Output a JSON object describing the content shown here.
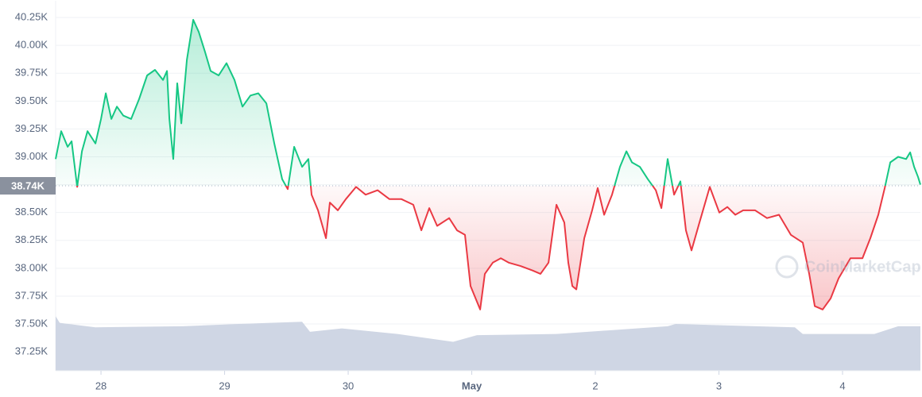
{
  "chart_data": {
    "type": "line",
    "x": [
      -0.367,
      -0.322,
      -0.27,
      -0.238,
      -0.193,
      -0.154,
      -0.109,
      -0.045,
      0,
      0.039,
      0.084,
      0.129,
      0.18,
      0.244,
      0.309,
      0.373,
      0.437,
      0.502,
      0.534,
      0.553,
      0.585,
      0.617,
      0.65,
      0.695,
      0.746,
      0.791,
      0.842,
      0.887,
      0.952,
      1.016,
      1.08,
      1.145,
      1.209,
      1.273,
      1.338,
      1.402,
      1.466,
      1.511,
      1.563,
      1.627,
      1.678,
      1.704,
      1.756,
      1.82,
      1.852,
      1.916,
      1.981,
      2.064,
      2.141,
      2.238,
      2.334,
      2.431,
      2.527,
      2.592,
      2.656,
      2.72,
      2.817,
      2.881,
      2.945,
      2.99,
      3.042,
      3.068,
      3.106,
      3.17,
      3.235,
      3.299,
      3.395,
      3.492,
      3.556,
      3.621,
      3.685,
      3.749,
      3.781,
      3.814,
      3.846,
      3.91,
      3.974,
      4.019,
      4.071,
      4.135,
      4.199,
      4.251,
      4.296,
      4.36,
      4.424,
      4.489,
      4.534,
      4.585,
      4.637,
      4.688,
      4.733,
      4.778,
      4.842,
      4.926,
      5.003,
      5.068,
      5.132,
      5.196,
      5.293,
      5.389,
      5.486,
      5.582,
      5.678,
      5.73,
      5.775,
      5.839,
      5.904,
      5.968,
      6.064,
      6.161,
      6.225,
      6.289,
      6.341,
      6.386,
      6.45,
      6.514,
      6.547,
      6.579,
      6.611,
      6.63
    ],
    "values": [
      38980,
      39230,
      39090,
      39140,
      38730,
      39050,
      39230,
      39120,
      39340,
      39570,
      39340,
      39450,
      39370,
      39340,
      39520,
      39730,
      39780,
      39690,
      39770,
      39340,
      38980,
      39660,
      39300,
      39870,
      40230,
      40120,
      39940,
      39770,
      39730,
      39840,
      39690,
      39450,
      39550,
      39570,
      39480,
      39120,
      38800,
      38710,
      39090,
      38910,
      38980,
      38660,
      38520,
      38270,
      38590,
      38520,
      38620,
      38730,
      38660,
      38700,
      38620,
      38620,
      38570,
      38340,
      38540,
      38380,
      38450,
      38340,
      38300,
      37840,
      37700,
      37630,
      37950,
      38050,
      38090,
      38050,
      38020,
      37980,
      37950,
      38050,
      38570,
      38410,
      38050,
      37840,
      37810,
      38270,
      38520,
      38720,
      38480,
      38660,
      38910,
      39050,
      38950,
      38910,
      38800,
      38700,
      38540,
      38980,
      38660,
      38780,
      38340,
      38160,
      38410,
      38730,
      38500,
      38550,
      38480,
      38520,
      38520,
      38450,
      38480,
      38300,
      38230,
      37950,
      37660,
      37630,
      37730,
      37910,
      38090,
      38090,
      38270,
      38480,
      38720,
      38950,
      39000,
      38980,
      39040,
      38910,
      38820,
      38750
    ],
    "baseline": {
      "value": 38740,
      "label": "38.74K"
    },
    "up_color": "#16c784",
    "down_color": "#ea3943",
    "volume": {
      "color": "#cfd6e4",
      "x": [
        -0.367,
        -0.334,
        -0.045,
        0.662,
        1.113,
        1.627,
        1.691,
        1.949,
        2.399,
        2.849,
        3.042,
        3.685,
        4.585,
        4.65,
        5.614,
        5.678,
        6.257,
        6.45,
        6.63
      ],
      "values": [
        37570,
        37510,
        37470,
        37480,
        37500,
        37520,
        37430,
        37460,
        37410,
        37340,
        37400,
        37410,
        37480,
        37500,
        37470,
        37410,
        37410,
        37480,
        37480
      ]
    },
    "xlim": [
      -0.367,
      6.63
    ],
    "xticks": [
      {
        "value": 0,
        "label": "28"
      },
      {
        "value": 1,
        "label": "29"
      },
      {
        "value": 2,
        "label": "30"
      },
      {
        "value": 3,
        "label": "May"
      },
      {
        "value": 4,
        "label": "2"
      },
      {
        "value": 5,
        "label": "3"
      },
      {
        "value": 6,
        "label": "4"
      }
    ],
    "ylim": [
      37080,
      40400
    ],
    "yticks": [
      {
        "value": 37250,
        "label": "37.25K"
      },
      {
        "value": 37500,
        "label": "37.50K"
      },
      {
        "value": 37750,
        "label": "37.75K"
      },
      {
        "value": 38000,
        "label": "38.00K"
      },
      {
        "value": 38250,
        "label": "38.25K"
      },
      {
        "value": 38500,
        "label": "38.50K"
      },
      {
        "value": 38750,
        "label": "38.75K"
      },
      {
        "value": 39000,
        "label": "39.00K"
      },
      {
        "value": 39250,
        "label": "39.25K"
      },
      {
        "value": 39500,
        "label": "39.50K"
      },
      {
        "value": 39750,
        "label": "39.75K"
      },
      {
        "value": 40000,
        "label": "40.00K"
      },
      {
        "value": 40250,
        "label": "40.25K"
      }
    ],
    "grid": true,
    "watermark": "CoinMarketCap"
  }
}
